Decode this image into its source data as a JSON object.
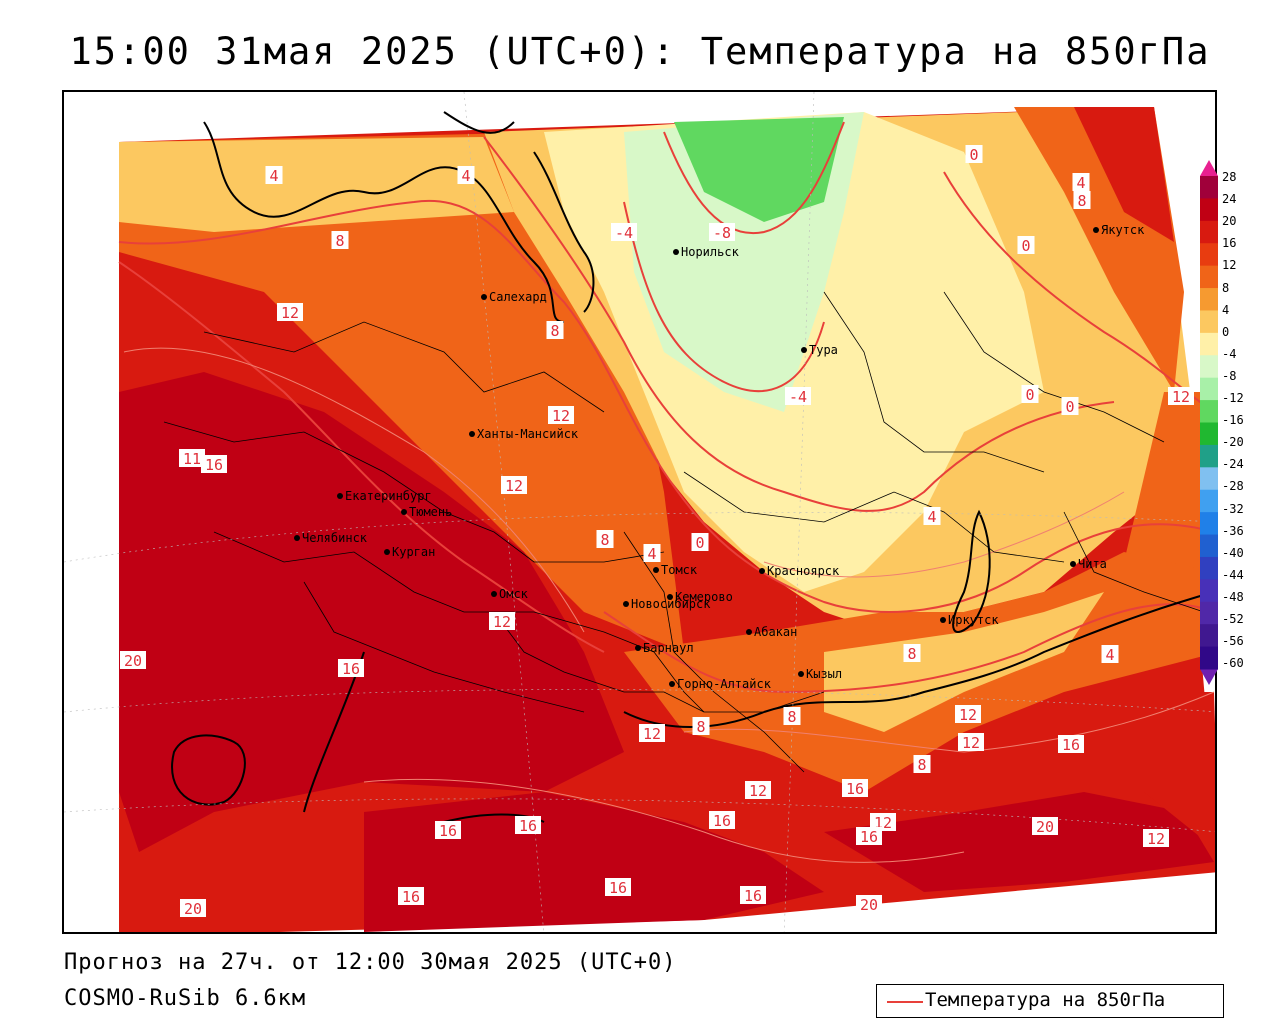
{
  "title": "15:00 31мая 2025 (UTC+0): Температура на 850гПа",
  "footer": {
    "forecast": "Прогноз на 27ч. от 12:00 30мая 2025 (UTC+0)",
    "model": "COSMO-RuSib 6.6км"
  },
  "legend": {
    "label": "Температура на 850гПа",
    "line_color": "#e8403a"
  },
  "colorbar": {
    "labels": [
      "28",
      "24",
      "20",
      "16",
      "12",
      "8",
      "4",
      "0",
      "-4",
      "-8",
      "-12",
      "-16",
      "-20",
      "-24",
      "-28",
      "-32",
      "-36",
      "-40",
      "-44",
      "-48",
      "-52",
      "-56",
      "-60"
    ],
    "colors": [
      "#a0003a",
      "#c00014",
      "#d81a10",
      "#e83c10",
      "#f06418",
      "#f69a30",
      "#fcc860",
      "#fff0a8",
      "#d8f8c8",
      "#a8f0a8",
      "#60d860",
      "#20b830",
      "#20a088",
      "#80c0f0",
      "#40a0f0",
      "#2080e8",
      "#2060d0",
      "#3040c0",
      "#4830b8",
      "#5028a8",
      "#401890",
      "#300888"
    ]
  },
  "cities": [
    {
      "name": "Норильск"
    },
    {
      "name": "Якутск"
    },
    {
      "name": "Салехард"
    },
    {
      "name": "Тура"
    },
    {
      "name": "Ханты-Мансийск"
    },
    {
      "name": "Екатеринбург"
    },
    {
      "name": "Тюмень"
    },
    {
      "name": "Челябинск"
    },
    {
      "name": "Курган"
    },
    {
      "name": "Омск"
    },
    {
      "name": "Новосибирск"
    },
    {
      "name": "Томск"
    },
    {
      "name": "Кемерово"
    },
    {
      "name": "Красноярск"
    },
    {
      "name": "Абакан"
    },
    {
      "name": "Барнаул"
    },
    {
      "name": "Горно-Алтайск"
    },
    {
      "name": "Кызыл"
    },
    {
      "name": "Иркутск"
    },
    {
      "name": "Чита"
    }
  ],
  "isotherm_labels": [
    "4",
    "4",
    "8",
    "12",
    "-4",
    "-8",
    "0",
    "8",
    "4",
    "0",
    "8",
    "12",
    "-4",
    "16",
    "11",
    "12",
    "0",
    "0",
    "8",
    "4",
    "0",
    "4",
    "12",
    "20",
    "16",
    "12",
    "8",
    "4",
    "8",
    "8",
    "12",
    "12",
    "16",
    "12",
    "8",
    "12",
    "16",
    "16",
    "16",
    "12",
    "20",
    "12",
    "16",
    "16",
    "16",
    "16",
    "16",
    "20",
    "20"
  ]
}
